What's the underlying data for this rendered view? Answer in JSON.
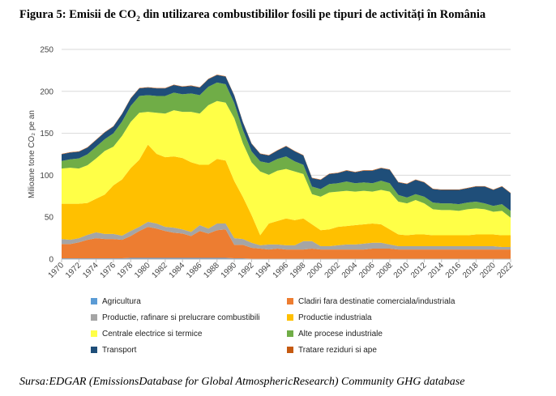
{
  "figure": {
    "title_prefix": "Figura 5: Emisii de CO",
    "title_sub": "2",
    "title_suffix": " din utilizarea combustibililor fosili pe tipuri de activități în România",
    "source": "Sursa:EDGAR (EmissionsDatabase for Global AtmosphericResearch) Community GHG database"
  },
  "chart_data": {
    "type": "area",
    "stacked": true,
    "ylabel": "Milioane tone CO₂ pe an",
    "ylim": [
      0,
      250
    ],
    "yticks": [
      0,
      50,
      100,
      150,
      200,
      250
    ],
    "xlim": [
      1970,
      2022
    ],
    "xticks": [
      1970,
      1972,
      1974,
      1976,
      1978,
      1980,
      1982,
      1984,
      1986,
      1988,
      1990,
      1992,
      1994,
      1996,
      1998,
      2000,
      2002,
      2004,
      2006,
      2008,
      2010,
      2012,
      2014,
      2016,
      2018,
      2020,
      2022
    ],
    "grid": "horizontal",
    "legend_position": "bottom",
    "x": [
      1970,
      1971,
      1972,
      1973,
      1974,
      1975,
      1976,
      1977,
      1978,
      1979,
      1980,
      1981,
      1982,
      1983,
      1984,
      1985,
      1986,
      1987,
      1988,
      1989,
      1990,
      1991,
      1992,
      1993,
      1994,
      1995,
      1996,
      1997,
      1998,
      1999,
      2000,
      2001,
      2002,
      2003,
      2004,
      2005,
      2006,
      2007,
      2008,
      2009,
      2010,
      2011,
      2012,
      2013,
      2014,
      2015,
      2016,
      2017,
      2018,
      2019,
      2020,
      2021,
      2022
    ],
    "series": [
      {
        "name": "Agricultura",
        "color": "#5b9bd5",
        "values": [
          1,
          1,
          1,
          1,
          1,
          1,
          1,
          1,
          1.5,
          1.5,
          1.5,
          1.5,
          1.5,
          1.5,
          1.5,
          1.5,
          1.5,
          1.5,
          1.5,
          1.5,
          1,
          1,
          0.5,
          0.5,
          0.5,
          0.5,
          0.5,
          0.5,
          0.5,
          0.5,
          0.5,
          0.5,
          0.5,
          0.5,
          0.5,
          0.5,
          0.5,
          0.5,
          0.5,
          0.5,
          0.5,
          0.5,
          0.5,
          0.5,
          0.5,
          0.5,
          0.5,
          0.5,
          0.5,
          0.5,
          0.5,
          0.5,
          0.5
        ]
      },
      {
        "name": "Cladiri fara destinatie comerciala/industriala",
        "color": "#ed7d31",
        "values": [
          17,
          17,
          19,
          22,
          24,
          23,
          23,
          22,
          26,
          32,
          37,
          35,
          32,
          30,
          29,
          26,
          32,
          29,
          33,
          34,
          16,
          16,
          13,
          12,
          11,
          12,
          11,
          11,
          11,
          12,
          11,
          11,
          11,
          11,
          11,
          11,
          12,
          12,
          12,
          11,
          11,
          11,
          11,
          11,
          11,
          11,
          11,
          11,
          11,
          11,
          11,
          11,
          11
        ]
      },
      {
        "name": "Productie, rafinare si prelucrare combustibili",
        "color": "#a5a5a5",
        "values": [
          6,
          5,
          5,
          6,
          7,
          6,
          6,
          5,
          6,
          5,
          6,
          6,
          5,
          6,
          5,
          5,
          7,
          6,
          8,
          7,
          8,
          7,
          6,
          4,
          6,
          5,
          5,
          5,
          10,
          9,
          4,
          4,
          5,
          6,
          6,
          7,
          7,
          7,
          5,
          4,
          4,
          4,
          4,
          4,
          4,
          4,
          4,
          4,
          4,
          4,
          4,
          3,
          3
        ]
      },
      {
        "name": "Productie industriala",
        "color": "#ffc000",
        "values": [
          42,
          43,
          41,
          38,
          40,
          47,
          58,
          67,
          75,
          80,
          92,
          83,
          83,
          85,
          85,
          83,
          72,
          76,
          77,
          75,
          68,
          50,
          33,
          12,
          25,
          28,
          32,
          30,
          27,
          20,
          19,
          20,
          22,
          22,
          23,
          23,
          23,
          22,
          18,
          14,
          13,
          14,
          14,
          13,
          13,
          13,
          13,
          13,
          14,
          14,
          14,
          14,
          14
        ]
      },
      {
        "name": "Centrale electrice si termice",
        "color": "#ffff47",
        "values": [
          42,
          43,
          42,
          45,
          48,
          52,
          46,
          52,
          55,
          56,
          39,
          49,
          52,
          55,
          55,
          60,
          61,
          71,
          69,
          69,
          75,
          64,
          63,
          76,
          58,
          60,
          59,
          58,
          53,
          36,
          40,
          44,
          42,
          42,
          40,
          40,
          38,
          41,
          45,
          39,
          38,
          41,
          37,
          31,
          30,
          30,
          29,
          31,
          31,
          30,
          27,
          29,
          21
        ]
      },
      {
        "name": "Alte procese industriale",
        "color": "#70ad47",
        "values": [
          9,
          10,
          12,
          13,
          14,
          14,
          16,
          17,
          19,
          20,
          20,
          20,
          21,
          21,
          21,
          22,
          22,
          22,
          22,
          22,
          18,
          16,
          13,
          12,
          14,
          14,
          15,
          12,
          11,
          9,
          9,
          10,
          10,
          11,
          10,
          10,
          10,
          11,
          10,
          8,
          7,
          7,
          8,
          8,
          8,
          8,
          8,
          8,
          8,
          7,
          7,
          8,
          8
        ]
      },
      {
        "name": "Transport",
        "color": "#1f4e79",
        "values": [
          8,
          8,
          8,
          8,
          8,
          8,
          8,
          9,
          9,
          9,
          9,
          9,
          9,
          9,
          9,
          9,
          9,
          9,
          9,
          9,
          9,
          9,
          9,
          9,
          9,
          10,
          12,
          12,
          11,
          10,
          11,
          12,
          12,
          13,
          13,
          14,
          15,
          15,
          16,
          15,
          16,
          17,
          17,
          16,
          16,
          16,
          17,
          17,
          18,
          20,
          19,
          21,
          21
        ]
      },
      {
        "name": "Tratare reziduri si ape",
        "color": "#c55a11",
        "values": [
          0.5,
          0.5,
          0.5,
          0.5,
          0.5,
          0.5,
          0.5,
          0.5,
          0.5,
          0.5,
          0.5,
          0.5,
          0.5,
          0.5,
          0.5,
          0.5,
          0.5,
          0.5,
          0.5,
          0.5,
          0.5,
          0.5,
          0.5,
          0.5,
          0.5,
          0.5,
          0.5,
          0.5,
          0.5,
          0.5,
          0.5,
          0.5,
          0.5,
          0.5,
          0.5,
          0.5,
          0.5,
          0.5,
          0.5,
          0.5,
          0.5,
          0.5,
          0.5,
          0.5,
          0.5,
          0.5,
          0.5,
          0.5,
          0.5,
          0.5,
          0.5,
          0.5,
          0.5
        ]
      }
    ]
  }
}
